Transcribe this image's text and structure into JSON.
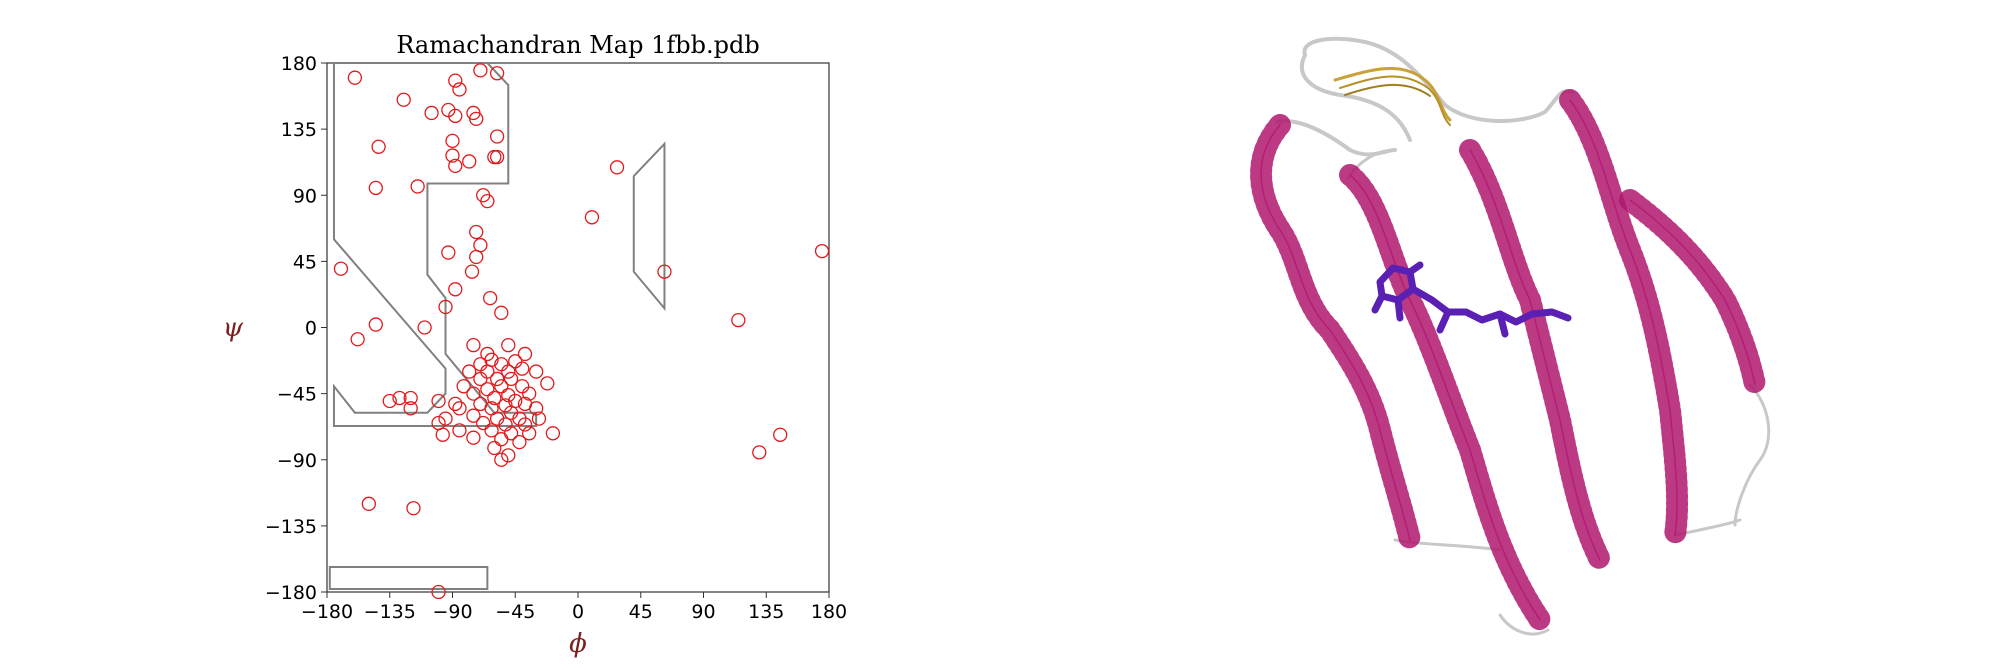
{
  "chart_data": {
    "type": "scatter",
    "title": "Ramachandran Map  1fbb.pdb",
    "xlabel": "ϕ",
    "ylabel": "ψ",
    "xlim": [
      -180,
      180
    ],
    "ylim": [
      -180,
      180
    ],
    "xticks": [
      "−180",
      "−135",
      "−90",
      "−45",
      "0",
      "45",
      "90",
      "135",
      "180"
    ],
    "yticks": [
      "180",
      "135",
      "90",
      "45",
      "0",
      "−45",
      "−90",
      "−135",
      "−180"
    ],
    "xtick_values": [
      -180,
      -135,
      -90,
      -45,
      0,
      45,
      90,
      135,
      180
    ],
    "ytick_values": [
      180,
      135,
      90,
      45,
      0,
      -45,
      -90,
      -135,
      -180
    ],
    "grid": false,
    "marker": "open-circle",
    "marker_color": "#e31a1c",
    "region_color": "#808080",
    "allowed_regions": [
      {
        "name": "beta-alpha",
        "points": [
          [
            -175,
            180
          ],
          [
            -65,
            180
          ],
          [
            -50,
            165
          ],
          [
            -50,
            98
          ],
          [
            -108,
            98
          ],
          [
            -108,
            36
          ],
          [
            -95,
            20
          ],
          [
            -95,
            -18
          ],
          [
            -60,
            -58
          ],
          [
            -30,
            -58
          ],
          [
            -30,
            -67
          ],
          [
            -175,
            -67
          ],
          [
            -175,
            -40
          ],
          [
            -160,
            -58
          ],
          [
            -108,
            -58
          ],
          [
            -95,
            -45
          ],
          [
            -95,
            -28
          ],
          [
            -175,
            60
          ]
        ]
      },
      {
        "name": "left-handed",
        "points": [
          [
            62,
            125
          ],
          [
            62,
            13
          ],
          [
            40,
            38
          ],
          [
            40,
            103
          ]
        ]
      },
      {
        "name": "bottom",
        "points": [
          [
            -178,
            -163
          ],
          [
            -65,
            -163
          ],
          [
            -65,
            -178
          ],
          [
            -178,
            -178
          ]
        ]
      }
    ],
    "series": [
      {
        "points": [
          [
            -160,
            170
          ],
          [
            -125,
            155
          ],
          [
            -88,
            168
          ],
          [
            -70,
            175
          ],
          [
            -58,
            173
          ],
          [
            -85,
            162
          ],
          [
            -105,
            146
          ],
          [
            -93,
            148
          ],
          [
            -88,
            144
          ],
          [
            -75,
            146
          ],
          [
            -73,
            142
          ],
          [
            -58,
            130
          ],
          [
            -90,
            127
          ],
          [
            -143,
            123
          ],
          [
            -90,
            117
          ],
          [
            -78,
            113
          ],
          [
            -60,
            116
          ],
          [
            -58,
            116
          ],
          [
            -88,
            110
          ],
          [
            -145,
            95
          ],
          [
            -115,
            96
          ],
          [
            -68,
            90
          ],
          [
            -65,
            86
          ],
          [
            10,
            75
          ],
          [
            28,
            109
          ],
          [
            -73,
            65
          ],
          [
            -70,
            56
          ],
          [
            -93,
            51
          ],
          [
            -73,
            48
          ],
          [
            -76,
            38
          ],
          [
            -170,
            40
          ],
          [
            -88,
            26
          ],
          [
            -63,
            20
          ],
          [
            -95,
            14
          ],
          [
            -55,
            10
          ],
          [
            -145,
            2
          ],
          [
            115,
            5
          ],
          [
            -110,
            0
          ],
          [
            -158,
            -8
          ],
          [
            175,
            52
          ],
          [
            62,
            38
          ],
          [
            -75,
            -12
          ],
          [
            -65,
            -18
          ],
          [
            -50,
            -12
          ],
          [
            -38,
            -18
          ],
          [
            -45,
            -23
          ],
          [
            -55,
            -25
          ],
          [
            -62,
            -22
          ],
          [
            -70,
            -25
          ],
          [
            -78,
            -30
          ],
          [
            -65,
            -30
          ],
          [
            -50,
            -30
          ],
          [
            -40,
            -28
          ],
          [
            -30,
            -30
          ],
          [
            -58,
            -35
          ],
          [
            -70,
            -35
          ],
          [
            -82,
            -40
          ],
          [
            -48,
            -35
          ],
          [
            -22,
            -38
          ],
          [
            -40,
            -40
          ],
          [
            -55,
            -40
          ],
          [
            -65,
            -42
          ],
          [
            -75,
            -45
          ],
          [
            -50,
            -46
          ],
          [
            -35,
            -45
          ],
          [
            -60,
            -48
          ],
          [
            -45,
            -50
          ],
          [
            -70,
            -52
          ],
          [
            -85,
            -55
          ],
          [
            -52,
            -53
          ],
          [
            -38,
            -52
          ],
          [
            -30,
            -55
          ],
          [
            -62,
            -55
          ],
          [
            -48,
            -58
          ],
          [
            -75,
            -60
          ],
          [
            -58,
            -62
          ],
          [
            -42,
            -62
          ],
          [
            -28,
            -62
          ],
          [
            -68,
            -65
          ],
          [
            -52,
            -66
          ],
          [
            -38,
            -66
          ],
          [
            -62,
            -70
          ],
          [
            -48,
            -72
          ],
          [
            -35,
            -72
          ],
          [
            -18,
            -72
          ],
          [
            -75,
            -75
          ],
          [
            -55,
            -76
          ],
          [
            -42,
            -78
          ],
          [
            -60,
            -82
          ],
          [
            -50,
            -87
          ],
          [
            -55,
            -90
          ],
          [
            -85,
            -70
          ],
          [
            -100,
            -65
          ],
          [
            -97,
            -73
          ],
          [
            -100,
            -50
          ],
          [
            -88,
            -52
          ],
          [
            -120,
            -48
          ],
          [
            -128,
            -48
          ],
          [
            -135,
            -50
          ],
          [
            -120,
            -55
          ],
          [
            -95,
            -62
          ],
          [
            145,
            -73
          ],
          [
            130,
            -85
          ],
          [
            -150,
            -120
          ],
          [
            -118,
            -123
          ],
          [
            -100,
            -180
          ]
        ]
      }
    ]
  }
}
